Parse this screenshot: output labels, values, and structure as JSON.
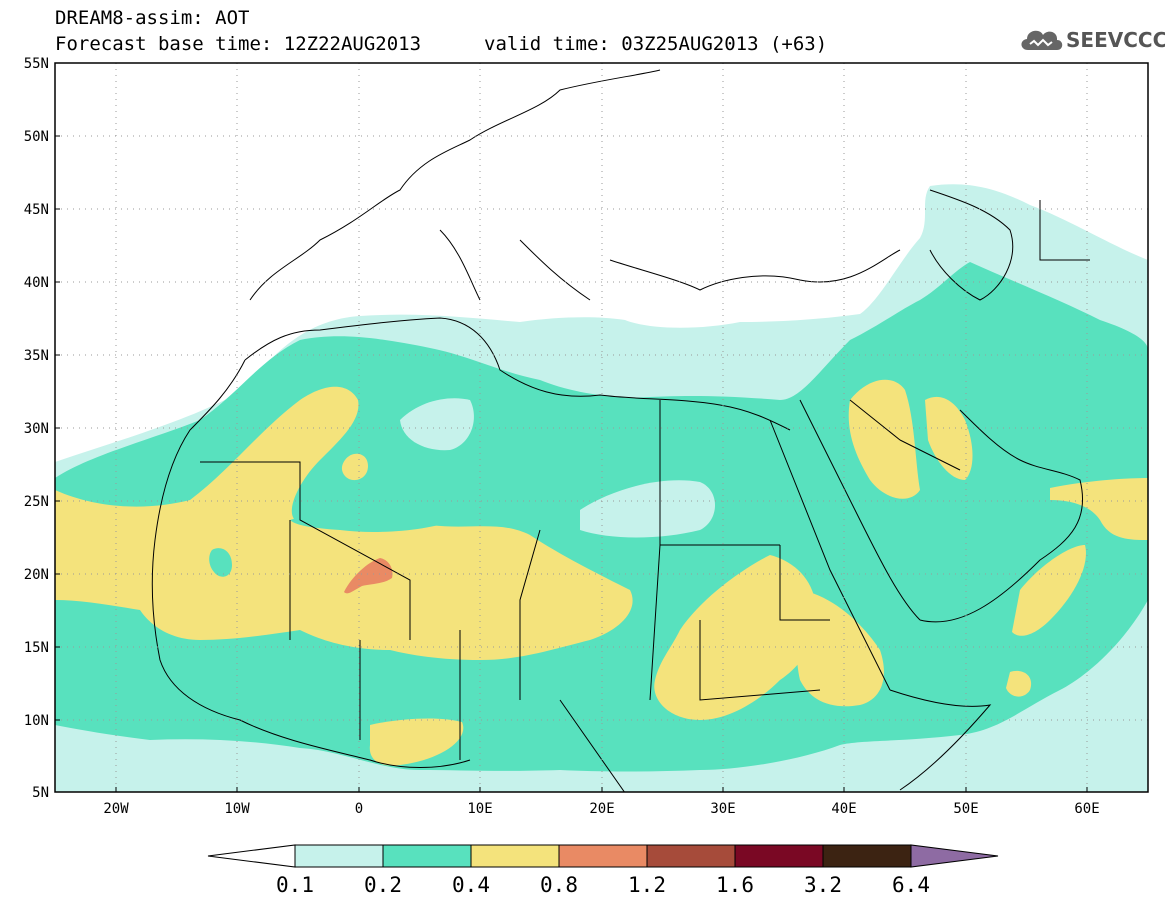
{
  "header": {
    "title": "DREAM8-assim: AOT",
    "base_time": "Forecast base time: 12Z22AUG2013",
    "valid_time": "valid time: 03Z25AUG2013 (+63)"
  },
  "logo": {
    "text": "SEEVCCC",
    "icon": "cloud-icon"
  },
  "map": {
    "lon_range": [
      -25,
      65
    ],
    "lat_range": [
      5,
      55
    ],
    "lat_labels": [
      "55N",
      "50N",
      "45N",
      "40N",
      "35N",
      "30N",
      "25N",
      "20N",
      "15N",
      "10N",
      "5N"
    ],
    "lon_labels": [
      "20W",
      "10W",
      "0",
      "10E",
      "20E",
      "30E",
      "40E",
      "50E",
      "60E"
    ]
  },
  "colorbar": {
    "boundaries": [
      "0.1",
      "0.2",
      "0.4",
      "0.8",
      "1.2",
      "1.6",
      "3.2",
      "6.4"
    ],
    "colors": {
      "under": "#ffffff",
      "bins": [
        "#c6f2eb",
        "#58e1be",
        "#f4e37c",
        "#e98a64",
        "#a64b3a",
        "#7a0824",
        "#3c2312"
      ],
      "over": "#8e6ba3"
    }
  },
  "field_colors": {
    "class_0_1_0_2": "#c6f2eb",
    "class_0_2_0_4": "#58e1be",
    "class_0_4_0_8": "#f4e37c",
    "class_0_8_1_2": "#e98a64"
  }
}
